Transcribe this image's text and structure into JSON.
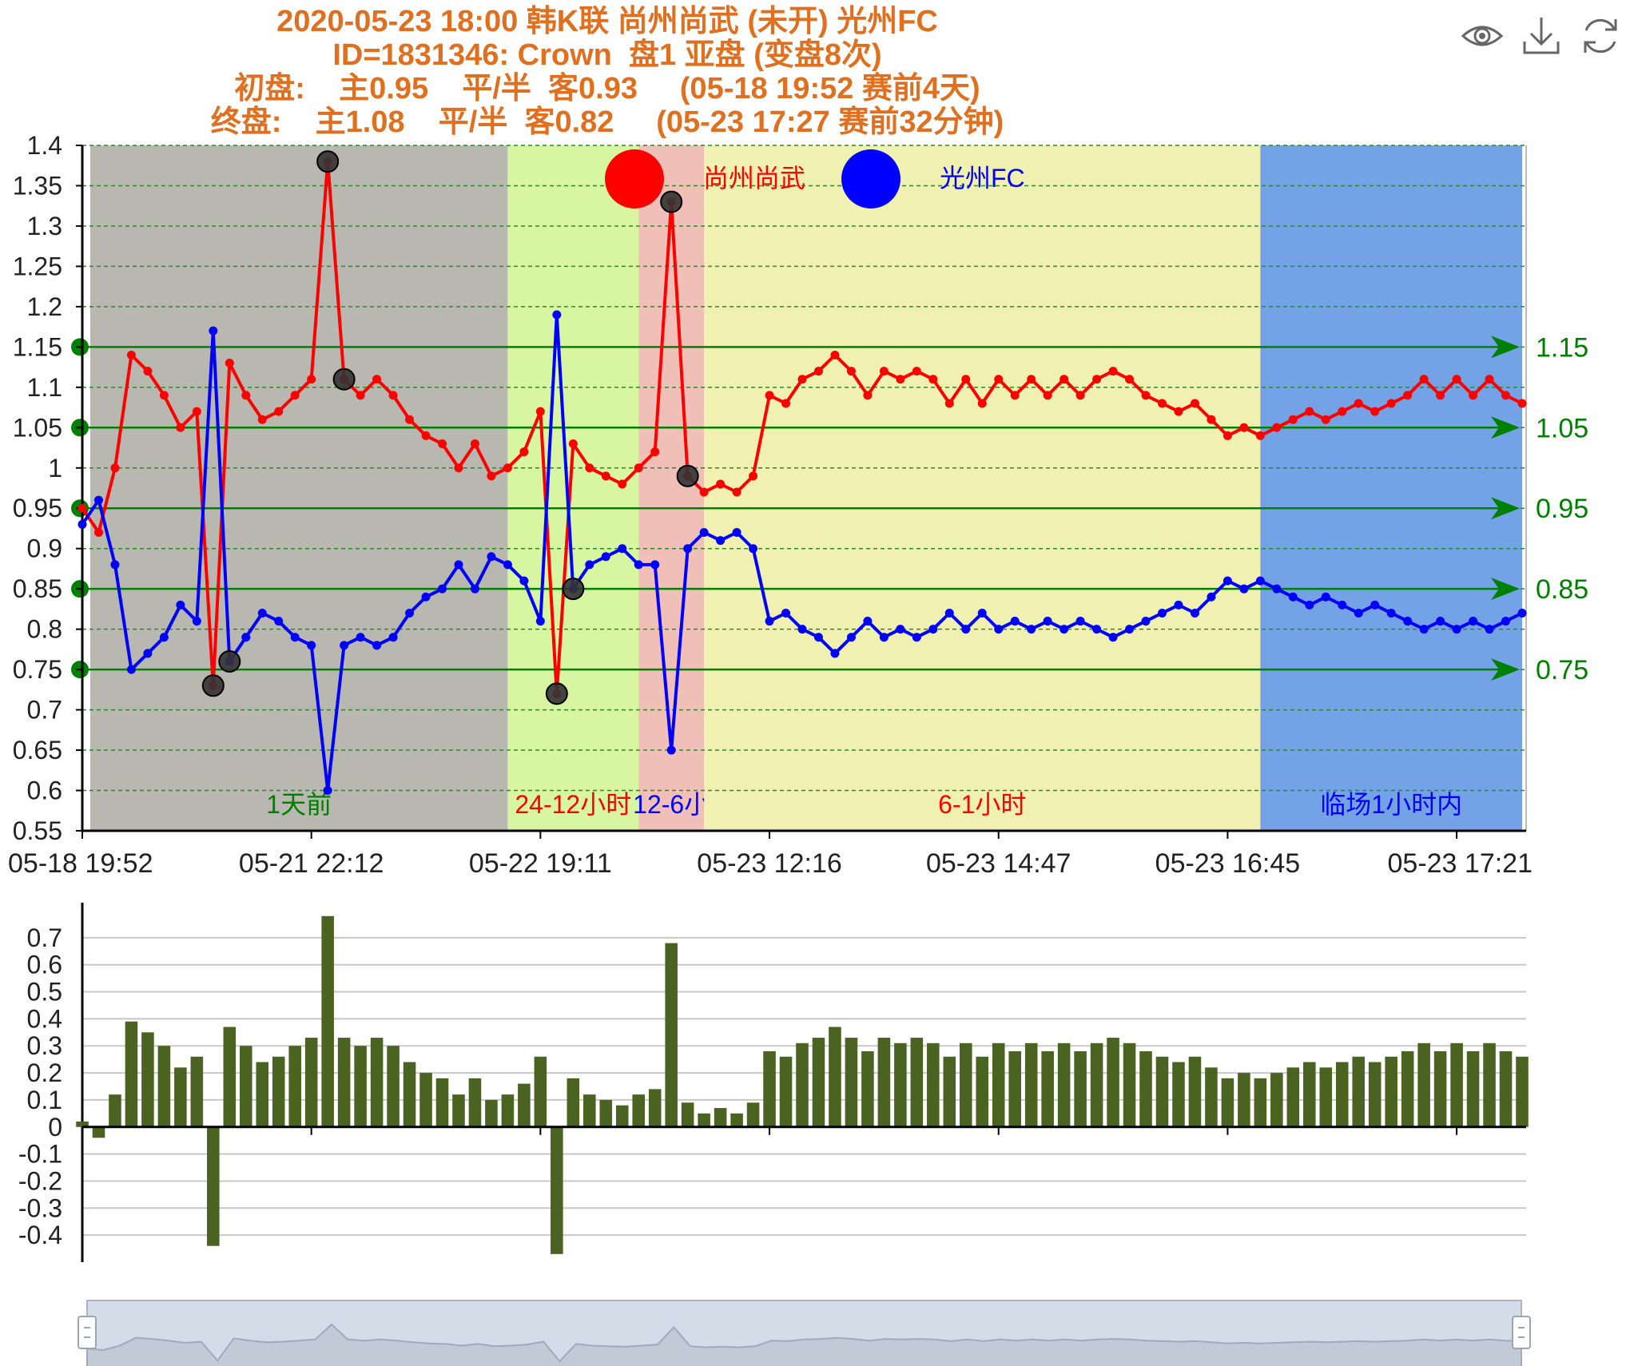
{
  "title_lines": [
    "2020-05-23 18:00 韩K联 尚州尚武 (未开) 光州FC",
    "ID=1831346: Crown  盘1 亚盘 (变盘8次)",
    "初盘:    主0.95    平/半  客0.93     (05-18 19:52 赛前4天)",
    "终盘:    主1.08    平/半  客0.82     (05-23 17:27 赛前32分钟)"
  ],
  "toolbox": [
    "eye-icon",
    "download-icon",
    "refresh-icon"
  ],
  "colors": {
    "title": "#e07020",
    "home": "#ff0000",
    "away": "#0000ff",
    "bar": "#4b6320",
    "marker": "#008000",
    "axis": "#000000",
    "band_1day": "#b8b8b0",
    "band_24_12": "#d8f5a2",
    "band_12_6": "#f0c0b8",
    "band_6_1": "#f0f0b0",
    "band_last1h": "#73a3e6",
    "zoom_fill": "#d4dce8"
  },
  "chart_data": {
    "type": "line",
    "legend": [
      {
        "name": "尚州尚武",
        "color": "#ff0000"
      },
      {
        "name": "光州FC",
        "color": "#0000ff"
      }
    ],
    "legend_position": "top-center",
    "ylim": [
      0.55,
      1.4
    ],
    "y_ticks": [
      1.4,
      1.35,
      1.3,
      1.25,
      1.2,
      1.15,
      1.1,
      1.05,
      1,
      0.95,
      0.9,
      0.85,
      0.8,
      0.75,
      0.7,
      0.65,
      0.6,
      0.55
    ],
    "x_tick_labels": [
      "05-18 19:52",
      "05-21 22:12",
      "05-22 19:11",
      "05-23 12:16",
      "05-23 14:47",
      "05-23 16:45",
      "05-23 17:21"
    ],
    "x_tick_index": [
      0,
      14,
      28,
      42,
      56,
      70,
      84
    ],
    "grid": true,
    "series": [
      {
        "name": "尚州尚武",
        "values": [
          0.95,
          0.92,
          1.0,
          1.14,
          1.12,
          1.09,
          1.05,
          1.07,
          0.73,
          1.13,
          1.09,
          1.06,
          1.07,
          1.09,
          1.11,
          1.38,
          1.11,
          1.09,
          1.11,
          1.09,
          1.06,
          1.04,
          1.03,
          1.0,
          1.03,
          0.99,
          1.0,
          1.02,
          1.07,
          0.72,
          1.03,
          1.0,
          0.99,
          0.98,
          1.0,
          1.02,
          1.33,
          0.99,
          0.97,
          0.98,
          0.97,
          0.99,
          1.09,
          1.08,
          1.11,
          1.12,
          1.14,
          1.12,
          1.09,
          1.12,
          1.11,
          1.12,
          1.11,
          1.08,
          1.11,
          1.08,
          1.11,
          1.09,
          1.11,
          1.09,
          1.11,
          1.09,
          1.11,
          1.12,
          1.11,
          1.09,
          1.08,
          1.07,
          1.08,
          1.06,
          1.04,
          1.05,
          1.04,
          1.05,
          1.06,
          1.07,
          1.06,
          1.07,
          1.08,
          1.07,
          1.08,
          1.09,
          1.11,
          1.09,
          1.11,
          1.09,
          1.11,
          1.09,
          1.08
        ]
      },
      {
        "name": "光州FC",
        "values": [
          0.93,
          0.96,
          0.88,
          0.75,
          0.77,
          0.79,
          0.83,
          0.81,
          1.17,
          0.76,
          0.79,
          0.82,
          0.81,
          0.79,
          0.78,
          0.6,
          0.78,
          0.79,
          0.78,
          0.79,
          0.82,
          0.84,
          0.85,
          0.88,
          0.85,
          0.89,
          0.88,
          0.86,
          0.81,
          1.19,
          0.85,
          0.88,
          0.89,
          0.9,
          0.88,
          0.88,
          0.65,
          0.9,
          0.92,
          0.91,
          0.92,
          0.9,
          0.81,
          0.82,
          0.8,
          0.79,
          0.77,
          0.79,
          0.81,
          0.79,
          0.8,
          0.79,
          0.8,
          0.82,
          0.8,
          0.82,
          0.8,
          0.81,
          0.8,
          0.81,
          0.8,
          0.81,
          0.8,
          0.79,
          0.8,
          0.81,
          0.82,
          0.83,
          0.82,
          0.84,
          0.86,
          0.85,
          0.86,
          0.85,
          0.84,
          0.83,
          0.84,
          0.83,
          0.82,
          0.83,
          0.82,
          0.81,
          0.8,
          0.81,
          0.8,
          0.81,
          0.8,
          0.81,
          0.82
        ]
      }
    ],
    "highlight_points": [
      {
        "series": 0,
        "index": 8
      },
      {
        "series": 0,
        "index": 15
      },
      {
        "series": 0,
        "index": 16
      },
      {
        "series": 0,
        "index": 29
      },
      {
        "series": 0,
        "index": 36
      },
      {
        "series": 0,
        "index": 37
      },
      {
        "series": 1,
        "index": 9
      },
      {
        "series": 1,
        "index": 30
      }
    ],
    "bands": [
      {
        "label": "1天前",
        "from": 0,
        "to": 26,
        "color": "#b8b8b0",
        "label_color": "#008000"
      },
      {
        "label": "24-12小时",
        "from": 26,
        "to": 34,
        "color": "#d8f5a2",
        "label_color": "#ff0000"
      },
      {
        "label": "12-6小",
        "from": 34,
        "to": 38,
        "color": "#f0c0b8",
        "label_color": "#0000ff"
      },
      {
        "label": "6-1小时",
        "from": 38,
        "to": 72,
        "color": "#f0f0b0",
        "label_color": "#ff0000"
      },
      {
        "label": "临场1小时内",
        "from": 72,
        "to": 88,
        "color": "#73a3e6",
        "label_color": "#0000ff"
      }
    ],
    "mark_lines": [
      {
        "value": 1.15,
        "label": "1.15"
      },
      {
        "value": 1.05,
        "label": "1.05"
      },
      {
        "value": 0.95,
        "label": "0.95"
      },
      {
        "value": 0.85,
        "label": "0.85"
      },
      {
        "value": 0.75,
        "label": "0.75"
      }
    ]
  },
  "bar_chart": {
    "type": "bar",
    "ylim": [
      -0.5,
      0.8
    ],
    "y_ticks": [
      0.7,
      0.6,
      0.5,
      0.4,
      0.3,
      0.2,
      0.1,
      0,
      -0.1,
      -0.2,
      -0.3,
      -0.4
    ],
    "grid": true,
    "values": [
      0.02,
      -0.04,
      0.12,
      0.39,
      0.35,
      0.3,
      0.22,
      0.26,
      -0.44,
      0.37,
      0.3,
      0.24,
      0.26,
      0.3,
      0.33,
      0.78,
      0.33,
      0.3,
      0.33,
      0.3,
      0.24,
      0.2,
      0.18,
      0.12,
      0.18,
      0.1,
      0.12,
      0.16,
      0.26,
      -0.47,
      0.18,
      0.12,
      0.1,
      0.08,
      0.12,
      0.14,
      0.68,
      0.09,
      0.05,
      0.07,
      0.05,
      0.09,
      0.28,
      0.26,
      0.31,
      0.33,
      0.37,
      0.33,
      0.28,
      0.33,
      0.31,
      0.33,
      0.31,
      0.26,
      0.31,
      0.26,
      0.31,
      0.28,
      0.31,
      0.28,
      0.31,
      0.28,
      0.31,
      0.33,
      0.31,
      0.28,
      0.26,
      0.24,
      0.26,
      0.22,
      0.18,
      0.2,
      0.18,
      0.2,
      0.22,
      0.24,
      0.22,
      0.24,
      0.26,
      0.24,
      0.26,
      0.28,
      0.31,
      0.28,
      0.31,
      0.28,
      0.31,
      0.28,
      0.26
    ]
  }
}
